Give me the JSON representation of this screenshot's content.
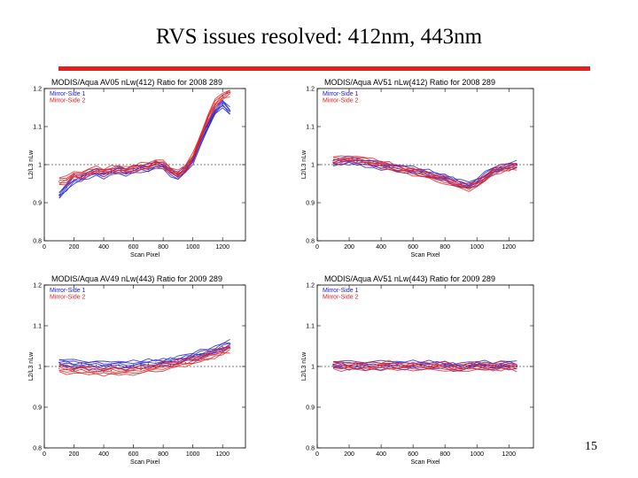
{
  "slide": {
    "title": "RVS issues resolved: 412nm, 443nm",
    "page_number": "15",
    "accent_color": "#e3201c"
  },
  "chart_data": [
    {
      "type": "line",
      "title": "MODIS/Aqua AV05 nLw(412) Ratio for 2008 289",
      "xlabel": "Scan Pixel",
      "ylabel": "L2/L3 nLw",
      "xlim": [
        0,
        1354
      ],
      "ylim": [
        0.8,
        1.2
      ],
      "xticks": [
        0,
        200,
        400,
        600,
        800,
        1000,
        1200
      ],
      "yticks": [
        0.8,
        0.9,
        1.0,
        1.1,
        1.2
      ],
      "x": [
        100,
        150,
        200,
        250,
        300,
        350,
        400,
        450,
        500,
        550,
        600,
        650,
        700,
        750,
        800,
        850,
        900,
        950,
        1000,
        1050,
        1100,
        1150,
        1200,
        1250
      ],
      "series": [
        {
          "name": "Mirror-Side 1",
          "color": "#2020d0",
          "values": [
            0.92,
            0.94,
            0.96,
            0.965,
            0.975,
            0.98,
            0.975,
            0.98,
            0.985,
            0.98,
            0.985,
            0.99,
            0.99,
            1.0,
            0.995,
            0.98,
            0.97,
            0.985,
            1.01,
            1.06,
            1.1,
            1.14,
            1.16,
            1.14
          ]
        },
        {
          "name": "Mirror-Side 2",
          "color": "#e02020",
          "values": [
            0.955,
            0.96,
            0.975,
            0.97,
            0.98,
            0.985,
            0.98,
            0.985,
            0.99,
            0.985,
            0.99,
            0.995,
            0.995,
            1.005,
            1.0,
            0.985,
            0.975,
            0.99,
            1.02,
            1.07,
            1.12,
            1.16,
            1.18,
            1.19
          ]
        }
      ],
      "reference_line": 1.0
    },
    {
      "type": "line",
      "title": "MODIS/Aqua AV51 nLw(412) Ratio for 2008 289",
      "xlabel": "Scan Pixel",
      "ylabel": "L2/L3 nLw",
      "xlim": [
        0,
        1354
      ],
      "ylim": [
        0.8,
        1.2
      ],
      "xticks": [
        0,
        200,
        400,
        600,
        800,
        1000,
        1200
      ],
      "yticks": [
        0.8,
        0.9,
        1.0,
        1.1,
        1.2
      ],
      "x": [
        100,
        150,
        200,
        250,
        300,
        350,
        400,
        450,
        500,
        550,
        600,
        650,
        700,
        750,
        800,
        850,
        900,
        950,
        1000,
        1050,
        1100,
        1150,
        1200,
        1250
      ],
      "series": [
        {
          "name": "Mirror-Side 1",
          "color": "#2020d0",
          "values": [
            1.005,
            1.008,
            1.01,
            1.008,
            1.005,
            1.0,
            0.998,
            0.995,
            0.99,
            0.988,
            0.985,
            0.98,
            0.975,
            0.97,
            0.965,
            0.958,
            0.95,
            0.945,
            0.955,
            0.97,
            0.985,
            0.99,
            0.995,
            1.0
          ]
        },
        {
          "name": "Mirror-Side 2",
          "color": "#e02020",
          "values": [
            1.01,
            1.012,
            1.015,
            1.012,
            1.01,
            1.005,
            1.0,
            0.995,
            0.99,
            0.985,
            0.982,
            0.978,
            0.97,
            0.965,
            0.96,
            0.952,
            0.945,
            0.94,
            0.95,
            0.965,
            0.98,
            0.988,
            0.993,
            0.998
          ]
        }
      ],
      "reference_line": 1.0
    },
    {
      "type": "line",
      "title": "MODIS/Aqua AV49 nLw(443) Ratio for 2009 289",
      "xlabel": "Scan Pixel",
      "ylabel": "L2/L3 nLw",
      "xlim": [
        0,
        1354
      ],
      "ylim": [
        0.8,
        1.2
      ],
      "xticks": [
        0,
        200,
        400,
        600,
        800,
        1000,
        1200
      ],
      "yticks": [
        0.8,
        0.9,
        1.0,
        1.1,
        1.2
      ],
      "x": [
        100,
        150,
        200,
        250,
        300,
        350,
        400,
        450,
        500,
        550,
        600,
        650,
        700,
        750,
        800,
        850,
        900,
        950,
        1000,
        1050,
        1100,
        1150,
        1200,
        1250
      ],
      "series": [
        {
          "name": "Mirror-Side 1",
          "color": "#2020d0",
          "values": [
            1.01,
            1.008,
            1.005,
            1.006,
            1.004,
            1.003,
            1.002,
            1.004,
            1.003,
            1.002,
            1.004,
            1.005,
            1.006,
            1.008,
            1.01,
            1.012,
            1.015,
            1.02,
            1.025,
            1.03,
            1.035,
            1.04,
            1.048,
            1.055
          ]
        },
        {
          "name": "Mirror-Side 2",
          "color": "#e02020",
          "values": [
            0.995,
            0.993,
            0.99,
            0.992,
            0.99,
            0.988,
            0.987,
            0.99,
            0.988,
            0.987,
            0.99,
            0.992,
            0.994,
            0.997,
            1.0,
            1.003,
            1.007,
            1.01,
            1.015,
            1.02,
            1.025,
            1.03,
            1.038,
            1.045
          ]
        }
      ],
      "reference_line": 1.0
    },
    {
      "type": "line",
      "title": "MODIS/Aqua AV51 nLw(443) Ratio for 2009 289",
      "xlabel": "Scan Pixel",
      "ylabel": "L2/L3 nLw",
      "xlim": [
        0,
        1354
      ],
      "ylim": [
        0.8,
        1.2
      ],
      "xticks": [
        0,
        200,
        400,
        600,
        800,
        1000,
        1200
      ],
      "yticks": [
        0.8,
        0.9,
        1.0,
        1.1,
        1.2
      ],
      "x": [
        100,
        150,
        200,
        250,
        300,
        350,
        400,
        450,
        500,
        550,
        600,
        650,
        700,
        750,
        800,
        850,
        900,
        950,
        1000,
        1050,
        1100,
        1150,
        1200,
        1250
      ],
      "series": [
        {
          "name": "Mirror-Side 1",
          "color": "#2020d0",
          "values": [
            1.005,
            1.004,
            1.002,
            1.004,
            1.003,
            1.002,
            1.004,
            1.005,
            1.003,
            1.002,
            1.004,
            1.003,
            1.002,
            1.004,
            1.003,
            1.0,
            0.998,
            1.002,
            1.004,
            1.003,
            1.001,
            1.003,
            1.004,
            1.002
          ]
        },
        {
          "name": "Mirror-Side 2",
          "color": "#e02020",
          "values": [
            1.002,
            1.001,
            1.0,
            1.001,
            1.0,
            0.999,
            1.001,
            1.002,
            1.0,
            0.999,
            1.001,
            1.0,
            0.999,
            1.001,
            1.0,
            0.997,
            0.995,
            0.999,
            1.001,
            1.0,
            0.998,
            1.0,
            1.001,
            0.999
          ]
        }
      ],
      "reference_line": 1.0
    }
  ]
}
